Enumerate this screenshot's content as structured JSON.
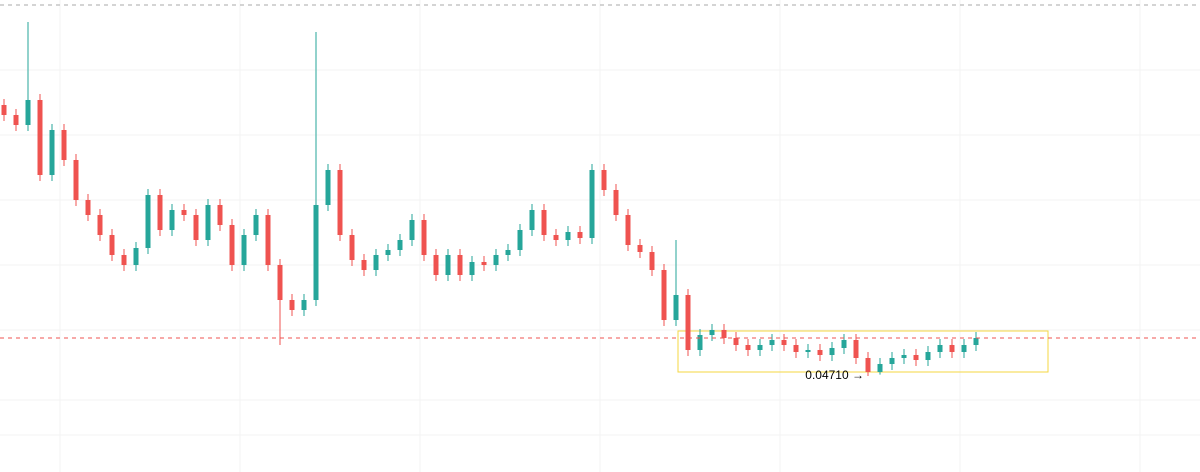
{
  "chart_data": {
    "type": "candlestick",
    "up_color": "#26a69a",
    "down_color": "#ef5350",
    "ylim": [
      0.04038,
      0.07342
    ],
    "annotation": "0.04710 →",
    "open": [
      0.06607,
      0.06537,
      0.06467,
      0.06642,
      0.06117,
      0.06432,
      0.06222,
      0.05942,
      0.05837,
      0.05697,
      0.05557,
      0.05487,
      0.05606,
      0.05977,
      0.05732,
      0.05872,
      0.05837,
      0.05662,
      0.05907,
      0.05767,
      0.05487,
      0.05697,
      0.05837,
      0.05487,
      0.05242,
      0.05172,
      0.05242,
      0.05907,
      0.06152,
      0.05697,
      0.05522,
      0.05452,
      0.05557,
      0.05592,
      0.05662,
      0.05802,
      0.05557,
      0.05417,
      0.05557,
      0.05417,
      0.05508,
      0.05487,
      0.05557,
      0.05592,
      0.05732,
      0.05872,
      0.05697,
      0.05662,
      0.05718,
      0.05676,
      0.06152,
      0.06012,
      0.05837,
      0.05627,
      0.05578,
      0.05452,
      0.05102,
      0.05277,
      0.04892,
      0.04997,
      0.05032,
      0.04976,
      0.04927,
      0.04892,
      0.04927,
      0.04962,
      0.04927,
      0.04878,
      0.04892,
      0.04857,
      0.04906,
      0.04962,
      0.04836,
      0.04738,
      0.04794,
      0.04836,
      0.04857,
      0.04822,
      0.04878,
      0.04927,
      0.04878,
      0.04927
    ],
    "high": [
      0.06649,
      0.06579,
      0.07188,
      0.06684,
      0.06474,
      0.06474,
      0.06264,
      0.05984,
      0.05879,
      0.05739,
      0.05599,
      0.05648,
      0.06019,
      0.06019,
      0.05914,
      0.05914,
      0.05879,
      0.05949,
      0.05949,
      0.05809,
      0.05739,
      0.05879,
      0.05879,
      0.05529,
      0.05284,
      0.05284,
      0.07118,
      0.06194,
      0.06194,
      0.05739,
      0.05564,
      0.05599,
      0.05634,
      0.05704,
      0.05844,
      0.05844,
      0.05599,
      0.05599,
      0.05599,
      0.0555,
      0.0555,
      0.05599,
      0.05634,
      0.05774,
      0.05914,
      0.05914,
      0.05739,
      0.0576,
      0.0576,
      0.06194,
      0.06194,
      0.06054,
      0.05879,
      0.05669,
      0.0562,
      0.05494,
      0.05662,
      0.05319,
      0.05039,
      0.05074,
      0.05074,
      0.05018,
      0.04969,
      0.04969,
      0.05004,
      0.05004,
      0.04969,
      0.04934,
      0.04934,
      0.04948,
      0.05004,
      0.05004,
      0.04878,
      0.04836,
      0.04878,
      0.04899,
      0.04899,
      0.0492,
      0.04969,
      0.04969,
      0.04969,
      0.05018
    ],
    "low": [
      0.06495,
      0.06425,
      0.06425,
      0.06075,
      0.06075,
      0.0618,
      0.059,
      0.05795,
      0.05655,
      0.05515,
      0.05445,
      0.05445,
      0.05564,
      0.0569,
      0.0569,
      0.05795,
      0.0562,
      0.0562,
      0.05725,
      0.05445,
      0.05445,
      0.05655,
      0.05445,
      0.04927,
      0.0513,
      0.0513,
      0.052,
      0.05865,
      0.05655,
      0.0548,
      0.0541,
      0.0541,
      0.05515,
      0.0555,
      0.0562,
      0.05515,
      0.05375,
      0.05375,
      0.05375,
      0.05375,
      0.05445,
      0.05445,
      0.05515,
      0.0555,
      0.0569,
      0.05655,
      0.0562,
      0.0562,
      0.05634,
      0.05634,
      0.0597,
      0.05795,
      0.05585,
      0.05536,
      0.0541,
      0.0506,
      0.0506,
      0.0485,
      0.0485,
      0.04955,
      0.04934,
      0.04885,
      0.0485,
      0.0485,
      0.04885,
      0.04885,
      0.04836,
      0.04836,
      0.04815,
      0.04815,
      0.04864,
      0.04794,
      0.0471,
      0.0472,
      0.04752,
      0.04794,
      0.0478,
      0.0478,
      0.04836,
      0.04836,
      0.04836,
      0.04885
    ],
    "close": [
      0.06537,
      0.06467,
      0.06642,
      0.06117,
      0.06432,
      0.06222,
      0.05942,
      0.05837,
      0.05697,
      0.05557,
      0.05487,
      0.05606,
      0.05977,
      0.05732,
      0.05872,
      0.05837,
      0.05662,
      0.05907,
      0.05767,
      0.05487,
      0.05697,
      0.05837,
      0.05487,
      0.05242,
      0.05172,
      0.05242,
      0.05907,
      0.06152,
      0.05697,
      0.05522,
      0.05452,
      0.05557,
      0.05592,
      0.05662,
      0.05802,
      0.05557,
      0.05417,
      0.05557,
      0.05417,
      0.05508,
      0.05487,
      0.05557,
      0.05592,
      0.05732,
      0.05872,
      0.05697,
      0.05662,
      0.05718,
      0.05676,
      0.06152,
      0.06012,
      0.05837,
      0.05627,
      0.05578,
      0.05452,
      0.05102,
      0.05277,
      0.04892,
      0.04997,
      0.05032,
      0.04976,
      0.04927,
      0.04892,
      0.04927,
      0.04962,
      0.04927,
      0.04878,
      0.04892,
      0.04857,
      0.04906,
      0.04962,
      0.04836,
      0.04738,
      0.04794,
      0.04836,
      0.04857,
      0.04822,
      0.04878,
      0.04927,
      0.04878,
      0.04927,
      0.04976
    ]
  }
}
